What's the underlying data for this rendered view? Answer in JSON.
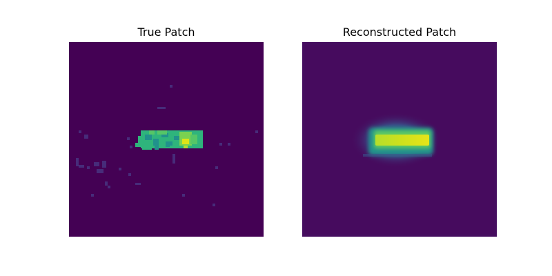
{
  "figure": {
    "panels": [
      {
        "title": "True Patch"
      },
      {
        "title": "Reconstructed Patch"
      }
    ]
  },
  "colors": {
    "background_true": "#440154",
    "background_reconstructed": "#450d5f",
    "noise_speckle": "#472c7a",
    "patch_green": "#2fb47c",
    "patch_teal": "#21918c",
    "patch_lime": "#7ad151",
    "patch_yellow": "#dde318",
    "recon_halo_outer": "#3b528b",
    "recon_halo_inner": "#2a788e",
    "recon_core": "#b5de2b",
    "recon_hot": "#e5e419"
  }
}
